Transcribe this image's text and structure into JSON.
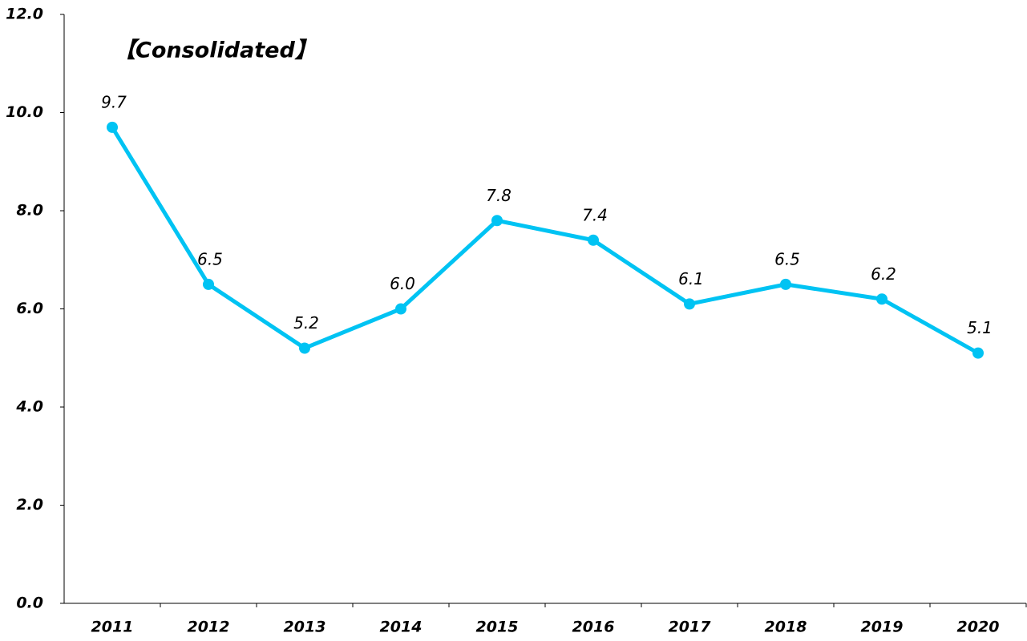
{
  "chart_data": {
    "type": "line",
    "title": "【Consolidated】",
    "categories": [
      "2011",
      "2012",
      "2013",
      "2014",
      "2015",
      "2016",
      "2017",
      "2018",
      "2019",
      "2020"
    ],
    "series": [
      {
        "name": "Consolidated",
        "color": "#00c3f3",
        "values": [
          9.7,
          6.5,
          5.2,
          6.0,
          7.8,
          7.4,
          6.1,
          6.5,
          6.2,
          5.1
        ],
        "value_labels": [
          "9.7",
          "6.5",
          "5.2",
          "6.0",
          "7.8",
          "7.4",
          "6.1",
          "6.5",
          "6.2",
          "5.1"
        ]
      }
    ],
    "ylim": [
      0,
      12
    ],
    "yticks": [
      {
        "value": 0,
        "label": "0.0"
      },
      {
        "value": 2,
        "label": "2.0"
      },
      {
        "value": 4,
        "label": "4.0"
      },
      {
        "value": 6,
        "label": "6.0"
      },
      {
        "value": 8,
        "label": "8.0"
      },
      {
        "value": 10,
        "label": "10.0"
      },
      {
        "value": 12,
        "label": "12.0"
      }
    ],
    "grid": false
  }
}
